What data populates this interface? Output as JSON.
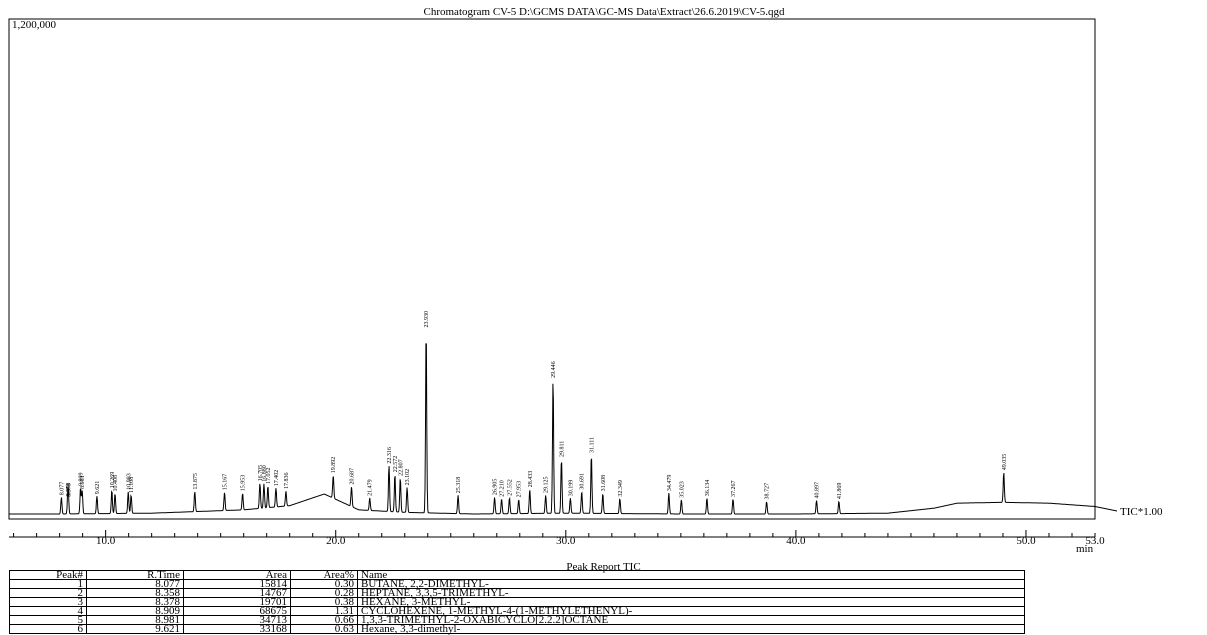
{
  "chart_data": {
    "type": "line",
    "title": "Chromatogram CV-5 D:\\GCMS DATA\\GC-MS Data\\Extract\\26.6.2019\\CV-5.qgd",
    "ymax_label": "1,200,000",
    "xlabel": "min",
    "trace_label": "TIC*1.00",
    "xlim": [
      5.8,
      53.0
    ],
    "ylim": [
      0,
      1200000
    ],
    "x_ticks": [
      {
        "v": 10.0,
        "label": "10.0"
      },
      {
        "v": 20.0,
        "label": "20.0"
      },
      {
        "v": 30.0,
        "label": "30.0"
      },
      {
        "v": 40.0,
        "label": "40.0"
      },
      {
        "v": 50.0,
        "label": "50.0"
      },
      {
        "v": 53.0,
        "label": "53.0"
      }
    ],
    "baseline": [
      [
        5.8,
        12000
      ],
      [
        8,
        12000
      ],
      [
        12,
        14000
      ],
      [
        16,
        22000
      ],
      [
        18,
        32000
      ],
      [
        19.5,
        60000
      ],
      [
        21,
        22000
      ],
      [
        23,
        16000
      ],
      [
        26,
        12000
      ],
      [
        30,
        14000
      ],
      [
        35,
        12000
      ],
      [
        40,
        12000
      ],
      [
        44,
        14000
      ],
      [
        46,
        26000
      ],
      [
        47,
        38000
      ],
      [
        49,
        40000
      ],
      [
        51,
        38000
      ],
      [
        53,
        30000
      ]
    ],
    "peaks": [
      {
        "rt": 8.077,
        "h": 40000,
        "label": "8.077"
      },
      {
        "rt": 8.358,
        "h": 38000,
        "label": "8.358"
      },
      {
        "rt": 8.378,
        "h": 36000,
        "label": "8.378"
      },
      {
        "rt": 8.909,
        "h": 62000,
        "label": "8.909"
      },
      {
        "rt": 8.981,
        "h": 55000,
        "label": "8.981"
      },
      {
        "rt": 9.621,
        "h": 42000,
        "label": "9.621"
      },
      {
        "rt": 10.269,
        "h": 56000,
        "label": "10.269"
      },
      {
        "rt": 10.408,
        "h": 48000,
        "label": "10.408"
      },
      {
        "rt": 10.983,
        "h": 52000,
        "label": "10.983"
      },
      {
        "rt": 11.108,
        "h": 44000,
        "label": "11.108"
      },
      {
        "rt": 13.875,
        "h": 48000,
        "label": "13.875"
      },
      {
        "rt": 15.167,
        "h": 44000,
        "label": "15.167"
      },
      {
        "rt": 15.953,
        "h": 40000,
        "label": "15.953"
      },
      {
        "rt": 16.705,
        "h": 60000,
        "label": "16.705"
      },
      {
        "rt": 16.88,
        "h": 58000,
        "label": "16.880"
      },
      {
        "rt": 17.052,
        "h": 52000,
        "label": "17.052"
      },
      {
        "rt": 17.402,
        "h": 45000,
        "label": "17.402"
      },
      {
        "rt": 17.836,
        "h": 36000,
        "label": "17.836"
      },
      {
        "rt": 19.892,
        "h": 55000,
        "label": "19.892"
      },
      {
        "rt": 20.687,
        "h": 48000,
        "label": "20.687"
      },
      {
        "rt": 21.479,
        "h": 30000,
        "label": "21.479"
      },
      {
        "rt": 22.316,
        "h": 110000,
        "label": "22.316"
      },
      {
        "rt": 22.572,
        "h": 90000,
        "label": "22.572"
      },
      {
        "rt": 22.807,
        "h": 82000,
        "label": "22.807"
      },
      {
        "rt": 23.102,
        "h": 60000,
        "label": "23.102"
      },
      {
        "rt": 23.93,
        "h": 440000,
        "label": "23.930"
      },
      {
        "rt": 25.318,
        "h": 44000,
        "label": "25.318"
      },
      {
        "rt": 26.905,
        "h": 40000,
        "label": "26.905"
      },
      {
        "rt": 27.21,
        "h": 36000,
        "label": "27.210"
      },
      {
        "rt": 27.552,
        "h": 38000,
        "label": "27.552"
      },
      {
        "rt": 27.953,
        "h": 34000,
        "label": "27.953"
      },
      {
        "rt": 28.433,
        "h": 58000,
        "label": "28.433"
      },
      {
        "rt": 29.125,
        "h": 44000,
        "label": "29.125"
      },
      {
        "rt": 29.446,
        "h": 320000,
        "label": "29.446"
      },
      {
        "rt": 29.811,
        "h": 130000,
        "label": "29.811"
      },
      {
        "rt": 30.199,
        "h": 36000,
        "label": "30.199"
      },
      {
        "rt": 30.691,
        "h": 52000,
        "label": "30.691"
      },
      {
        "rt": 31.111,
        "h": 140000,
        "label": "31.111"
      },
      {
        "rt": 31.608,
        "h": 48000,
        "label": "31.608"
      },
      {
        "rt": 32.349,
        "h": 36000,
        "label": "32.349"
      },
      {
        "rt": 34.479,
        "h": 50000,
        "label": "34.479"
      },
      {
        "rt": 35.023,
        "h": 34000,
        "label": "35.023"
      },
      {
        "rt": 36.134,
        "h": 38000,
        "label": "36.134"
      },
      {
        "rt": 37.267,
        "h": 36000,
        "label": "37.267"
      },
      {
        "rt": 38.727,
        "h": 30000,
        "label": "38.727"
      },
      {
        "rt": 40.897,
        "h": 32000,
        "label": "40.897"
      },
      {
        "rt": 41.869,
        "h": 30000,
        "label": "41.869"
      },
      {
        "rt": 49.035,
        "h": 72000,
        "label": "49.035"
      }
    ]
  },
  "report": {
    "title": "Peak Report TIC",
    "headers": [
      "Peak#",
      "R.Time",
      "Area",
      "Area%",
      "Name"
    ],
    "rows": [
      [
        "1",
        "8.077",
        "15814",
        "0.30",
        "BUTANE, 2,2-DIMETHYL-"
      ],
      [
        "2",
        "8.358",
        "14767",
        "0.28",
        "HEPTANE, 3,3,5-TRIMETHYL-"
      ],
      [
        "3",
        "8.378",
        "19701",
        "0.38",
        "HEXANE, 3-METHYL-"
      ],
      [
        "4",
        "8.909",
        "68675",
        "1.31",
        "CYCLOHEXENE, 1-METHYL-4-(1-METHYLETHENYL)-"
      ],
      [
        "5",
        "8.981",
        "34713",
        "0.66",
        "1,3,3-TRIMETHYL-2-OXABICYCLO[2.2.2]OCTANE"
      ],
      [
        "6",
        "9.621",
        "33168",
        "0.63",
        "Hexane, 3,3-dimethyl-"
      ]
    ]
  }
}
